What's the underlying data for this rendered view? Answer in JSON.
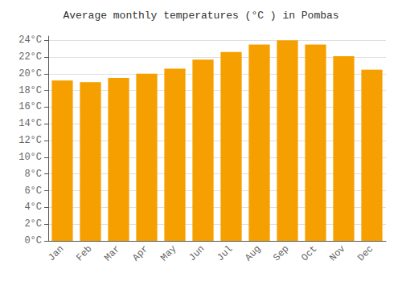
{
  "chart_data": {
    "type": "bar",
    "title": "Average monthly temperatures (°C ) in Pombas",
    "categories": [
      "Jan",
      "Feb",
      "Mar",
      "Apr",
      "May",
      "Jun",
      "Jul",
      "Aug",
      "Sep",
      "Oct",
      "Nov",
      "Dec"
    ],
    "values": [
      19.2,
      19.0,
      19.5,
      20.0,
      20.6,
      21.7,
      22.6,
      23.5,
      24.0,
      23.5,
      22.1,
      20.5
    ],
    "color": "#F5A000",
    "ylim": [
      0,
      24.5
    ],
    "yticks": [
      {
        "value": 0,
        "label": "0°C"
      },
      {
        "value": 2,
        "label": "2°C"
      },
      {
        "value": 4,
        "label": "4°C"
      },
      {
        "value": 6,
        "label": "6°C"
      },
      {
        "value": 8,
        "label": "8°C"
      },
      {
        "value": 10,
        "label": "10°C"
      },
      {
        "value": 12,
        "label": "12°C"
      },
      {
        "value": 14,
        "label": "14°C"
      },
      {
        "value": 16,
        "label": "16°C"
      },
      {
        "value": 18,
        "label": "18°C"
      },
      {
        "value": 20,
        "label": "20°C"
      },
      {
        "value": 22,
        "label": "22°C"
      },
      {
        "value": 24,
        "label": "24°C"
      }
    ],
    "grid": true
  }
}
